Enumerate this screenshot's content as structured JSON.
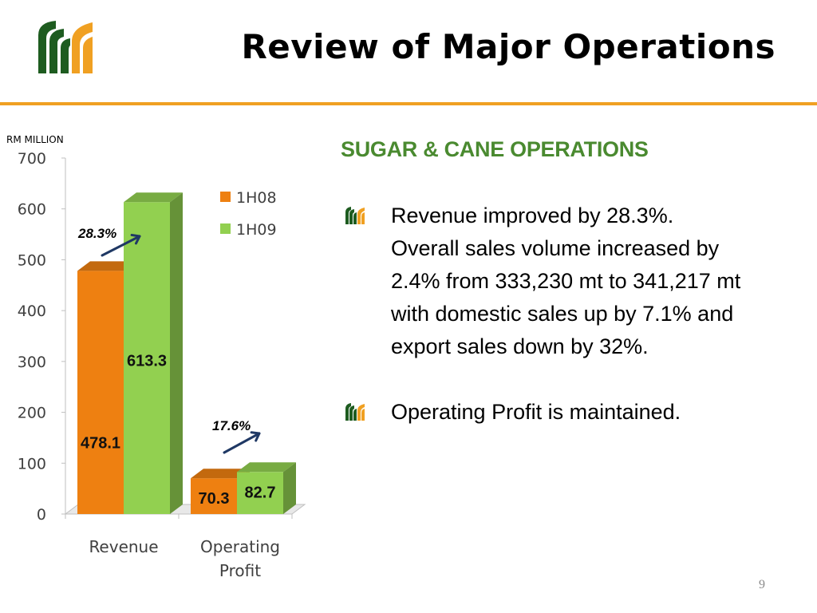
{
  "slide": {
    "title": "Review of Major Operations",
    "page_number": "9",
    "section_heading": "SUGAR & CANE OPERATIONS",
    "bullets": [
      {
        "text": "Revenue improved by 28.3%.\nOverall sales volume increased by 2.4% from 333,230 mt to 341,217 mt with domestic sales up by 7.1% and export sales down by 32%."
      },
      {
        "text": "Operating Profit is maintained."
      }
    ],
    "logo_icon": "company-logo-icon",
    "bullet_icon": "company-logo-bullet-icon"
  },
  "colors": {
    "rule": "#f0a022",
    "heading_green": "#4a8a30",
    "series_1H08": "#ee8011",
    "series_1H09": "#92d050",
    "arrow": "#1f3864",
    "logo_green": "#1e5c20",
    "logo_orange": "#f0a022"
  },
  "chart_data": {
    "type": "bar",
    "style": "3d-clustered-column",
    "unit_label": "RM MILLION",
    "categories": [
      "Revenue",
      "Operating Profit"
    ],
    "series": [
      {
        "name": "1H08",
        "values": [
          478.1,
          70.3
        ],
        "labels": [
          "478.1",
          "70.3"
        ]
      },
      {
        "name": "1H09",
        "values": [
          613.3,
          82.7
        ],
        "labels": [
          "613.3",
          "82.7"
        ]
      }
    ],
    "ylim": [
      0,
      700
    ],
    "yticks": [
      "0",
      "100",
      "200",
      "300",
      "400",
      "500",
      "600",
      "700"
    ],
    "legend_position": "top-right",
    "growth_annotations": [
      "28.3%",
      "17.6%"
    ],
    "grid": false
  }
}
